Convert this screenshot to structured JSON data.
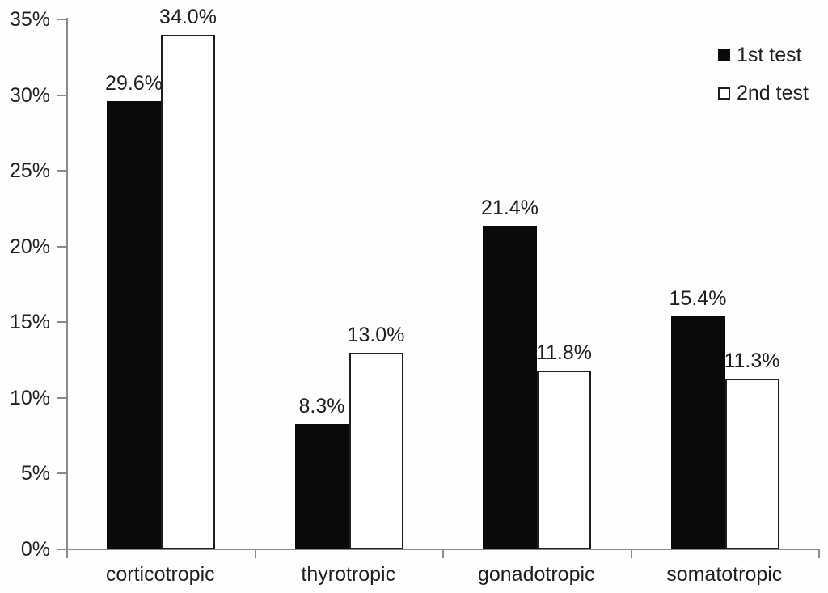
{
  "chart_data": {
    "type": "bar",
    "title": "",
    "xlabel": "",
    "ylabel": "",
    "categories": [
      "corticotropic",
      "thyrotropic",
      "gonadotropic",
      "somatotropic"
    ],
    "series": [
      {
        "name": "1st test",
        "values": [
          29.6,
          8.3,
          21.4,
          15.4
        ],
        "labels": [
          "29.6%",
          "8.3%",
          "21.4%",
          "15.4%"
        ],
        "fill": "#0a0a0a",
        "border": "#0a0a0a",
        "marker": "filled-square"
      },
      {
        "name": "2nd test",
        "values": [
          34.0,
          13.0,
          11.8,
          11.3
        ],
        "labels": [
          "34.0%",
          "13.0%",
          "11.8%",
          "11.3%"
        ],
        "fill": "#ffffff",
        "border": "#1f1f1f",
        "marker": "open-square"
      }
    ],
    "ylim": [
      0,
      35
    ],
    "ytick_step": 5,
    "ytick_labels": [
      "0%",
      "5%",
      "10%",
      "15%",
      "20%",
      "25%",
      "30%",
      "35%"
    ],
    "grid": false,
    "legend": {
      "position": "top-right",
      "entries": [
        "1st test",
        "2nd test"
      ]
    },
    "colors": {
      "axis": "#8a8a8a",
      "text": "#1f1f1f",
      "background": "#fefefe",
      "bar_black": "#0a0a0a",
      "bar_white": "#ffffff"
    }
  }
}
